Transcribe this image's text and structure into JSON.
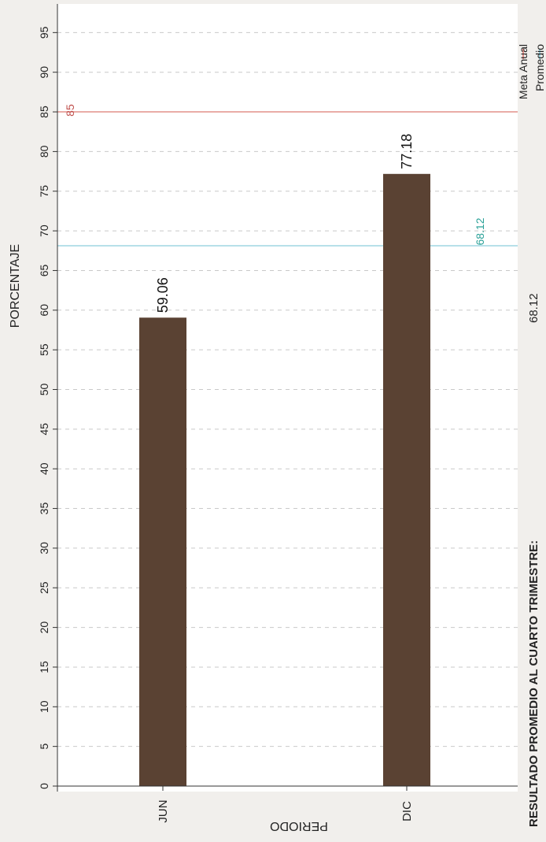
{
  "colors": {
    "bar": "#5a4233",
    "meta_line": "#e4908a",
    "meta_label": "#c0504d",
    "promedio_line": "#9fd6e2",
    "promedio_label": "#2aa198",
    "grid": "#c9c9c9",
    "axis": "#333333"
  },
  "chart_data": {
    "type": "bar",
    "orientation": "rotated-90-clockwise",
    "categories": [
      "JUN",
      "DIC"
    ],
    "values": [
      59.06,
      77.18
    ],
    "value_labels": [
      "59.06",
      "77.18"
    ],
    "ylabel": "PORCENTAJE",
    "xlabel": "PERIODO",
    "ylim": [
      0,
      95
    ],
    "yticks": [
      "0",
      "5",
      "10",
      "15",
      "20",
      "25",
      "30",
      "35",
      "40",
      "45",
      "50",
      "55",
      "60",
      "65",
      "70",
      "75",
      "80",
      "85",
      "90",
      "95"
    ],
    "grid": true,
    "reference_lines": [
      {
        "name": "Meta Anual",
        "value": 85,
        "label": "85"
      },
      {
        "name": "Promedio",
        "value": 68.12,
        "label": "68.12"
      }
    ],
    "legend": {
      "placement": "top-right",
      "entries": [
        "Meta Anual",
        "Promedio"
      ]
    }
  },
  "footer": {
    "label": "RESULTADO PROMEDIO AL CUARTO TRIMESTRE:",
    "value": "68.12"
  }
}
